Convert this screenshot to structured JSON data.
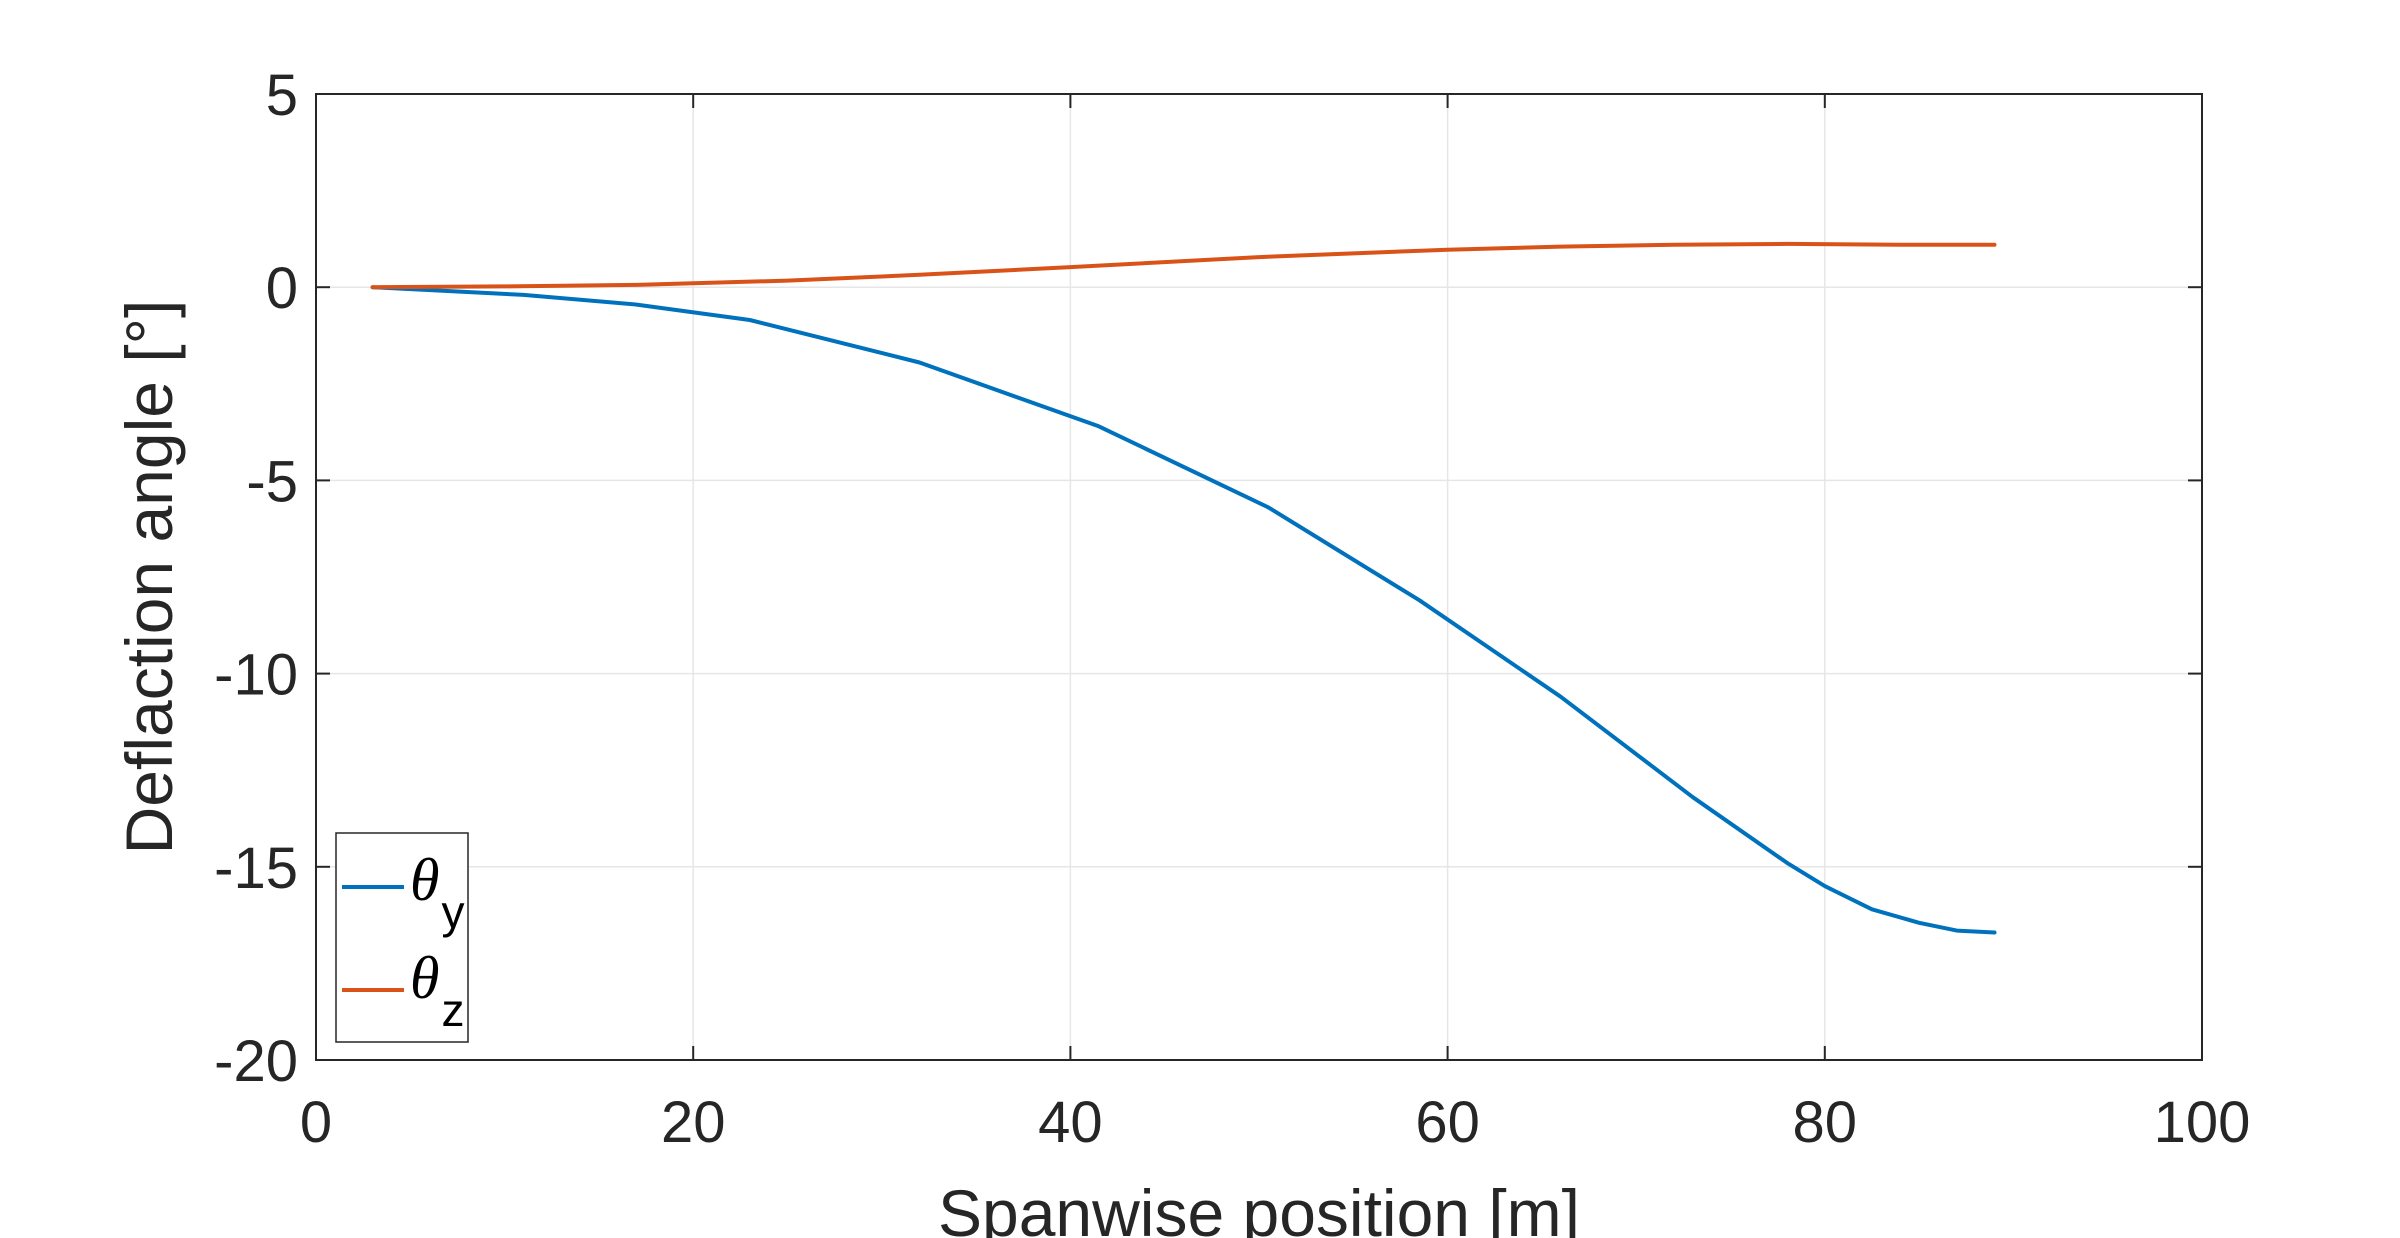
{
  "chart_data": {
    "type": "line",
    "xlabel": "Spanwise position [m]",
    "ylabel": "Deflaction angle [°]",
    "xlim": [
      0,
      100
    ],
    "ylim": [
      -20,
      5
    ],
    "xticks": [
      0,
      20,
      40,
      60,
      80,
      100
    ],
    "yticks": [
      -20,
      -15,
      -10,
      -5,
      0,
      5
    ],
    "xtick_labels": [
      "0",
      "20",
      "40",
      "60",
      "80",
      "100"
    ],
    "ytick_labels": [
      "-20",
      "-15",
      "-10",
      "-5",
      "0",
      "5"
    ],
    "grid": true,
    "legend_position": "bottom-left",
    "series": [
      {
        "name": "θy",
        "legend_symbol": "θ",
        "legend_subscript": "y",
        "color": "#0072BD",
        "x": [
          3,
          11,
          17,
          23,
          32,
          41.5,
          50.5,
          58.5,
          66,
          73,
          78,
          80,
          82.5,
          85,
          87,
          89
        ],
        "y": [
          0,
          -0.2,
          -0.45,
          -0.85,
          -1.95,
          -3.6,
          -5.7,
          -8.1,
          -10.6,
          -13.2,
          -14.9,
          -15.5,
          -16.1,
          -16.45,
          -16.65,
          -16.7
        ]
      },
      {
        "name": "θz",
        "legend_symbol": "θ",
        "legend_subscript": "z",
        "color": "#D95319",
        "x": [
          3,
          10,
          17,
          25,
          32,
          40,
          50,
          60,
          66,
          72,
          78,
          84,
          89
        ],
        "y": [
          0,
          0.02,
          0.06,
          0.17,
          0.32,
          0.52,
          0.78,
          0.97,
          1.05,
          1.1,
          1.12,
          1.1,
          1.1
        ]
      }
    ]
  }
}
